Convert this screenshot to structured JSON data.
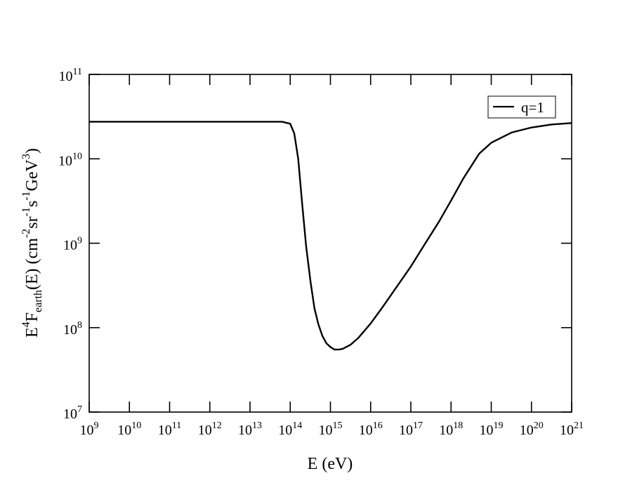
{
  "chart_data": {
    "type": "line",
    "xlabel": "E (eV)",
    "ylabel": {
      "parts": [
        "E",
        "4",
        "F",
        "earth",
        "(E) (cm",
        "-2",
        "sr",
        "-1",
        "s",
        "-1",
        "GeV",
        "3",
        ")"
      ]
    },
    "x_scale": "log",
    "y_scale": "log",
    "xlim": [
      1000000000.0,
      1e+21
    ],
    "ylim": [
      10000000.0,
      100000000000.0
    ],
    "x_ticks": [
      {
        "base": "10",
        "exp": "9"
      },
      {
        "base": "10",
        "exp": "10"
      },
      {
        "base": "10",
        "exp": "11"
      },
      {
        "base": "10",
        "exp": "12"
      },
      {
        "base": "10",
        "exp": "13"
      },
      {
        "base": "10",
        "exp": "14"
      },
      {
        "base": "10",
        "exp": "15"
      },
      {
        "base": "10",
        "exp": "16"
      },
      {
        "base": "10",
        "exp": "17"
      },
      {
        "base": "10",
        "exp": "18"
      },
      {
        "base": "10",
        "exp": "19"
      },
      {
        "base": "10",
        "exp": "20"
      },
      {
        "base": "10",
        "exp": "21"
      }
    ],
    "y_ticks": [
      {
        "base": "10",
        "exp": "7"
      },
      {
        "base": "10",
        "exp": "8"
      },
      {
        "base": "10",
        "exp": "9"
      },
      {
        "base": "10",
        "exp": "10"
      },
      {
        "base": "10",
        "exp": "11"
      }
    ],
    "grid": false,
    "legend": {
      "placement": "top-right",
      "entries": [
        "q=1"
      ]
    },
    "series": [
      {
        "name": "q=1",
        "color": "#000000",
        "points": [
          [
            1000000000.0,
            27500000000.0
          ],
          [
            10000000000.0,
            27500000000.0
          ],
          [
            100000000000.0,
            27500000000.0
          ],
          [
            1000000000000.0,
            27500000000.0
          ],
          [
            10000000000000.0,
            27500000000.0
          ],
          [
            63000000000000.0,
            27500000000.0
          ],
          [
            100000000000000.0,
            26000000000.0
          ],
          [
            126000000000000.0,
            20000000000.0
          ],
          [
            158000000000000.0,
            10000000000.0
          ],
          [
            200000000000000.0,
            2800000000.0
          ],
          [
            250000000000000.0,
            900000000.0
          ],
          [
            320000000000000.0,
            350000000.0
          ],
          [
            400000000000000.0,
            170000000.0
          ],
          [
            500000000000000.0,
            110000000.0
          ],
          [
            630000000000000.0,
            80000000.0
          ],
          [
            800000000000000.0,
            65000000.0
          ],
          [
            1000000000000000.0,
            59000000.0
          ],
          [
            1260000000000000.0,
            55000000.0
          ],
          [
            1600000000000000.0,
            55000000.0
          ],
          [
            2000000000000000.0,
            56000000.0
          ],
          [
            3200000000000000.0,
            63000000.0
          ],
          [
            5000000000000000.0,
            76000000.0
          ],
          [
            1e+16,
            112000000.0
          ],
          [
            2e+16,
            176000000.0
          ],
          [
            5e+16,
            330000000.0
          ],
          [
            1e+17,
            530000000.0
          ],
          [
            2e+17,
            900000000.0
          ],
          [
            5e+17,
            1800000000.0
          ],
          [
            1e+18,
            3200000000.0
          ],
          [
            2e+18,
            5800000000.0
          ],
          [
            5e+18,
            11500000000.0
          ],
          [
            1e+19,
            15500000000.0
          ],
          [
            3.2e+19,
            20500000000.0
          ],
          [
            1e+20,
            23500000000.0
          ],
          [
            3.2e+20,
            25500000000.0
          ],
          [
            1e+21,
            26500000000.0
          ]
        ]
      }
    ]
  }
}
